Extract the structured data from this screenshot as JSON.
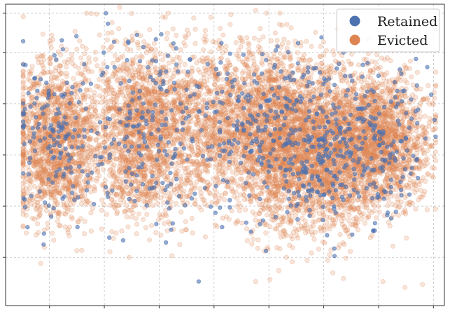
{
  "chart_data": {
    "type": "scatter",
    "title": "",
    "xlabel": "",
    "ylabel": "",
    "grid": true,
    "legend_position": "top-right",
    "xlim": [
      0,
      100
    ],
    "ylim": [
      0,
      100
    ],
    "series": [
      {
        "name": "Retained",
        "color": "#4c72b0",
        "alpha": 0.6,
        "count": 900,
        "points": [
          [
            5,
            26
          ],
          [
            31,
            46
          ],
          [
            97,
            70
          ],
          [
            94,
            65
          ],
          [
            92,
            59
          ],
          [
            58,
            27
          ],
          [
            44,
            8
          ],
          [
            22,
            47
          ],
          [
            77,
            84
          ],
          [
            72,
            89
          ]
        ]
      },
      {
        "name": "Evicted",
        "color": "#dd8452",
        "alpha": 0.22,
        "count": 9000,
        "points": [
          [
            26,
            99
          ],
          [
            57,
            98
          ],
          [
            63,
            93
          ],
          [
            95,
            7
          ],
          [
            91,
            6
          ],
          [
            8,
            14
          ],
          [
            57,
            8
          ],
          [
            77,
            9
          ],
          [
            86,
            8
          ],
          [
            64,
            16
          ]
        ]
      }
    ],
    "x_ticks": [
      10,
      22.5,
      35,
      47.5,
      60,
      72.5,
      85,
      97.5
    ],
    "y_ticks": [
      16,
      33,
      50,
      67,
      84,
      97
    ]
  }
}
